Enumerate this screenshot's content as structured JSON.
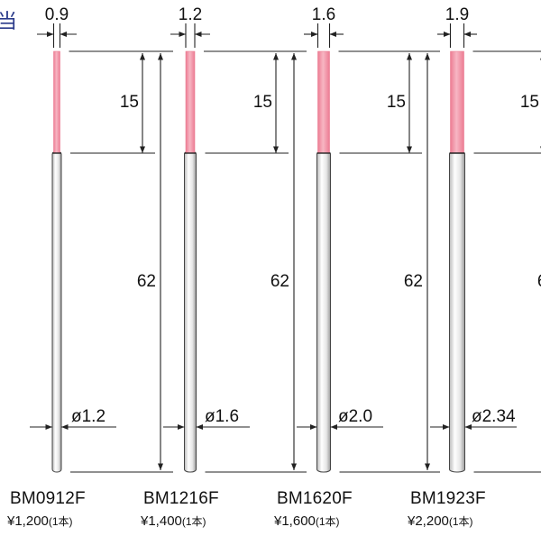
{
  "corner_glyph": "当",
  "colors": {
    "filament": "#ec7c93",
    "filament_light": "#f7b6c3",
    "shaft_edge": "#444444",
    "line": "#222222",
    "accent_text": "#2a3a8a"
  },
  "tools": [
    {
      "model": "BM0912F",
      "price": "¥1,200",
      "qty": "(1本)",
      "tip_width": "0.9",
      "tip_length": "15",
      "total_length": "62",
      "shaft_diameter": "ø1.2"
    },
    {
      "model": "BM1216F",
      "price": "¥1,400",
      "qty": "(1本)",
      "tip_width": "1.2",
      "tip_length": "15",
      "total_length": "62",
      "shaft_diameter": "ø1.6"
    },
    {
      "model": "BM1620F",
      "price": "¥1,600",
      "qty": "(1本)",
      "tip_width": "1.6",
      "tip_length": "15",
      "total_length": "62",
      "shaft_diameter": "ø2.0"
    },
    {
      "model": "BM1923F",
      "price": "¥2,200",
      "qty": "(1本)",
      "tip_width": "1.9",
      "tip_length": "15",
      "total_length": "62",
      "shaft_diameter": "ø2.34"
    }
  ]
}
